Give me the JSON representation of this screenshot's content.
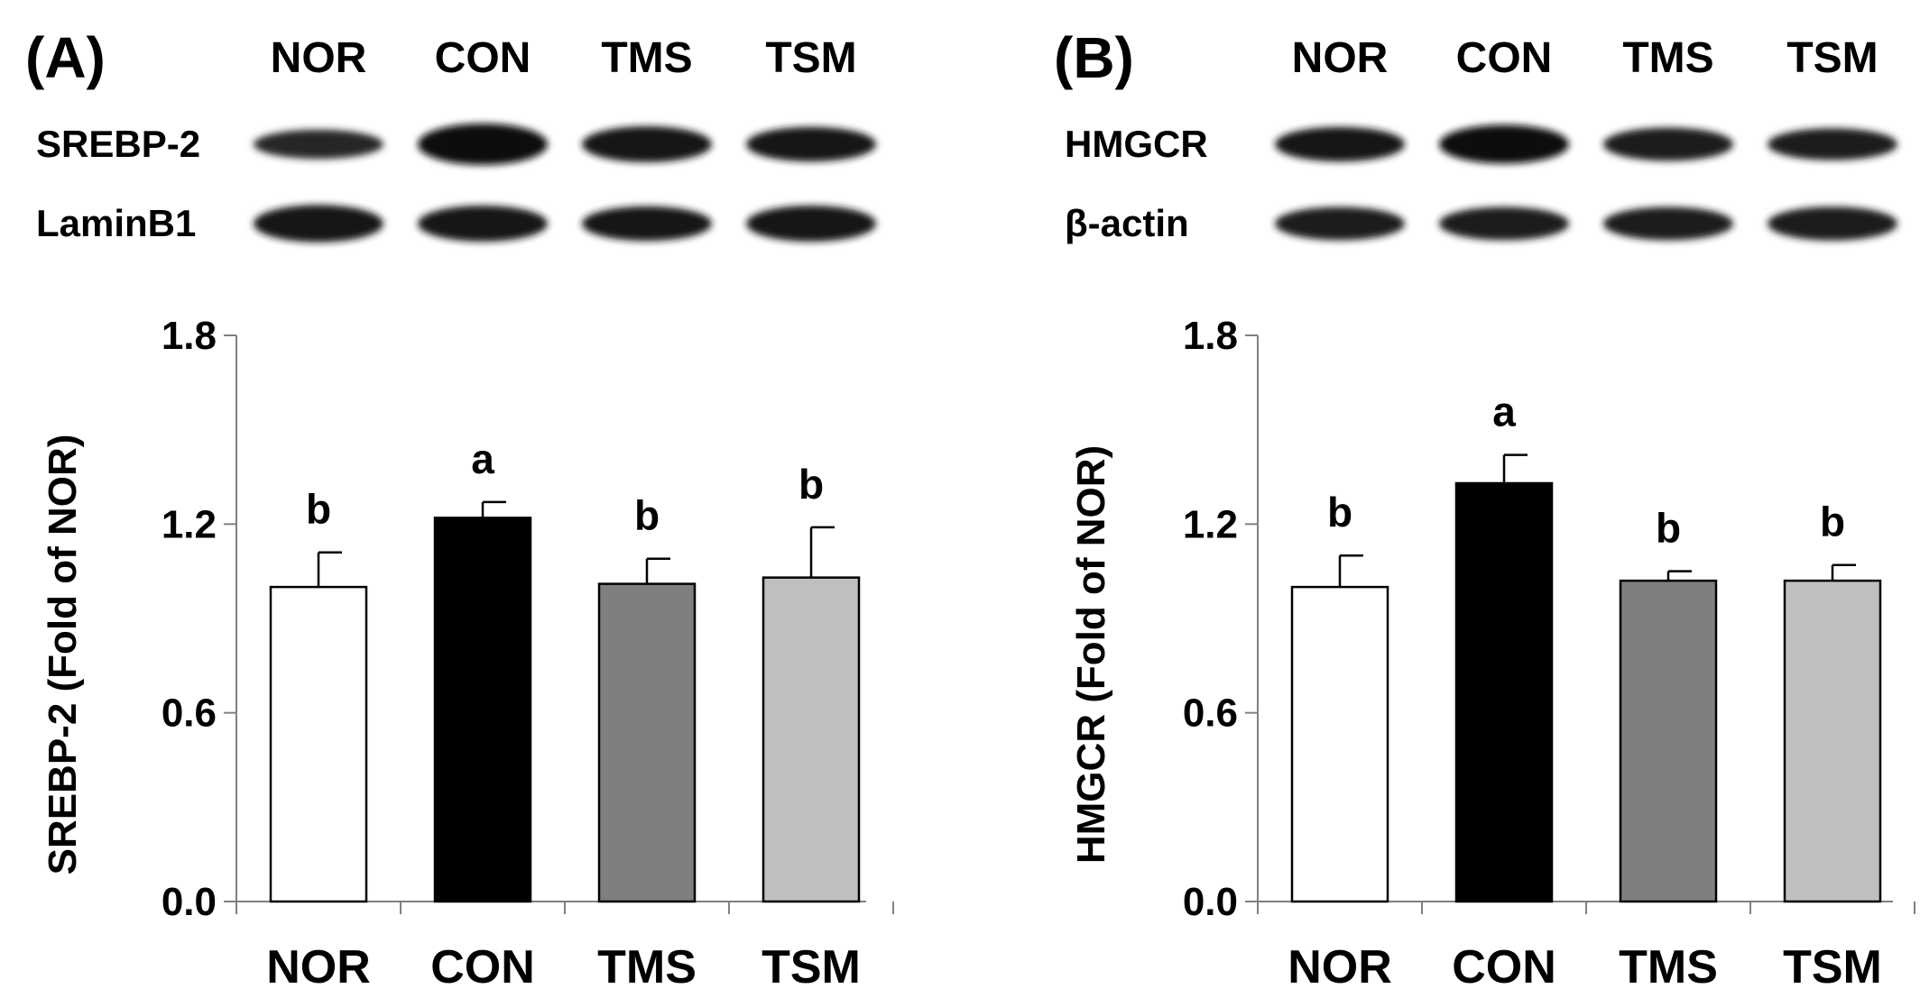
{
  "chart_data": [
    {
      "type": "bar",
      "panel_label": "(A)",
      "categories": [
        "NOR",
        "CON",
        "TMS",
        "TSM"
      ],
      "values": [
        1.0,
        1.22,
        1.01,
        1.03
      ],
      "errors": [
        0.11,
        0.05,
        0.08,
        0.16
      ],
      "significance": [
        "b",
        "a",
        "b",
        "b"
      ],
      "colors": [
        "#ffffff",
        "#000000",
        "#7f7f7f",
        "#bfbfbf"
      ],
      "ylabel": "SREBP-2 (Fold of NOR)",
      "xlabel": "",
      "ylim": [
        0,
        1.8
      ],
      "yticks": [
        "0.0",
        "0.6",
        "1.2",
        "1.8"
      ],
      "blot": {
        "lanes": [
          "NOR",
          "CON",
          "TMS",
          "TSM"
        ],
        "rows": [
          {
            "label": "SREBP-2",
            "intensity": [
              0.55,
              1.0,
              0.8,
              0.75
            ]
          },
          {
            "label": "LaminB1",
            "intensity": [
              0.85,
              0.8,
              0.75,
              0.8
            ]
          }
        ]
      }
    },
    {
      "type": "bar",
      "panel_label": "(B)",
      "categories": [
        "NOR",
        "CON",
        "TMS",
        "TSM"
      ],
      "values": [
        1.0,
        1.33,
        1.02,
        1.02
      ],
      "errors": [
        0.1,
        0.09,
        0.03,
        0.05
      ],
      "significance": [
        "b",
        "a",
        "b",
        "b"
      ],
      "colors": [
        "#ffffff",
        "#000000",
        "#7f7f7f",
        "#bfbfbf"
      ],
      "ylabel": "HMGCR  (Fold of NOR)",
      "xlabel": "",
      "ylim": [
        0,
        1.8
      ],
      "yticks": [
        "0.0",
        "0.6",
        "1.2",
        "1.8"
      ],
      "blot": {
        "lanes": [
          "NOR",
          "CON",
          "TMS",
          "TSM"
        ],
        "rows": [
          {
            "label": "HMGCR",
            "intensity": [
              0.75,
              0.9,
              0.7,
              0.65
            ]
          },
          {
            "label": "β-actin",
            "intensity": [
              0.7,
              0.7,
              0.7,
              0.72
            ]
          }
        ]
      }
    }
  ]
}
